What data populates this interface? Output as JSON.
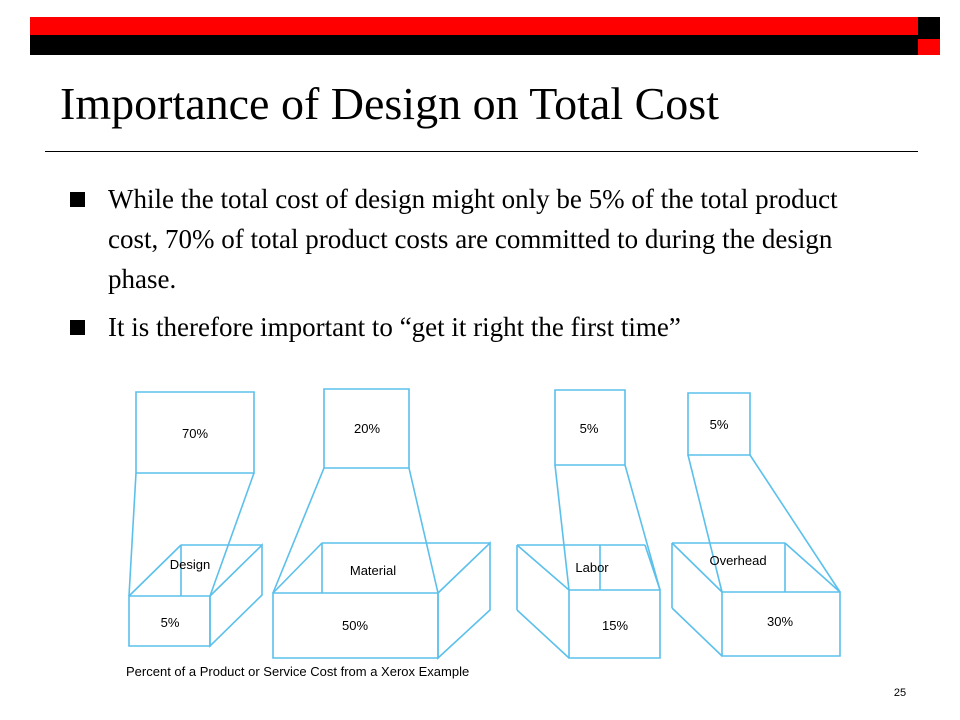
{
  "slide": {
    "title": "Importance of Design on Total Cost",
    "bullets": [
      "While the total cost of design might only be 5% of the total product cost, 70% of total product costs are committed to during the design phase.",
      "It is therefore important to “get it right the first time”"
    ],
    "page_number": "25"
  },
  "diagram": {
    "line_color": "#5bc0eb",
    "caption": "Percent of a Product or Service Cost from a Xerox Example",
    "funnels": [
      {
        "category": "Design",
        "committed_pct": "70%",
        "actual_pct": "5%"
      },
      {
        "category": "Material",
        "committed_pct": "20%",
        "actual_pct": "50%"
      },
      {
        "category": "Labor",
        "committed_pct": "5%",
        "actual_pct": "15%"
      },
      {
        "category": "Overhead",
        "committed_pct": "5%",
        "actual_pct": "30%"
      }
    ]
  },
  "colors": {
    "accent_red": "#ff0000",
    "accent_black": "#000000"
  }
}
